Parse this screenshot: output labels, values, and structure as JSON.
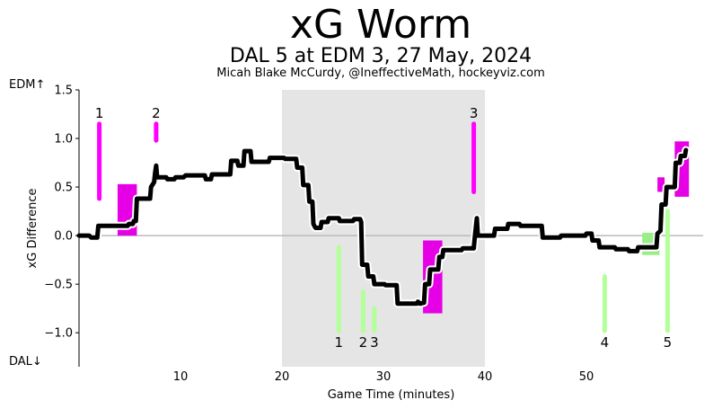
{
  "header": {
    "title": "xG Worm",
    "subtitle": "DAL 5 at EDM 3, 27 May, 2024",
    "credit": "Micah Blake McCurdy, @IneffectiveMath, hockeyviz.com"
  },
  "side_labels": {
    "top": "EDM↑",
    "bottom": "DAL↓"
  },
  "colors": {
    "worm": "#000000",
    "worm_halo": "#ffffff",
    "home_goal": "#ff00ff",
    "away_goal": "#b3ff99",
    "home_box": "#e600e6",
    "away_box": "#99ee88",
    "shade": "#e5e5e5",
    "zero_line": "#bbbbbb"
  },
  "chart_data": {
    "type": "line",
    "title": "xG Worm",
    "xlabel": "Game Time (minutes)",
    "ylabel": "xG Difference",
    "xlim": [
      0,
      61.5
    ],
    "ylim": [
      -1.35,
      1.5
    ],
    "x_ticks": [
      10,
      20,
      30,
      40,
      50
    ],
    "y_ticks": [
      1.5,
      1.0,
      0.5,
      0.0,
      -0.5,
      -1.0
    ],
    "y_tick_labels": [
      "1.5",
      "1.0",
      "0.5",
      "0.0",
      "−0.5",
      "−1.0"
    ],
    "shaded_period": [
      20,
      40
    ],
    "worm": [
      [
        0,
        0.0
      ],
      [
        1,
        0.0
      ],
      [
        1.2,
        -0.02
      ],
      [
        1.8,
        -0.02
      ],
      [
        1.9,
        0.1
      ],
      [
        4.8,
        0.1
      ],
      [
        4.9,
        0.12
      ],
      [
        5.3,
        0.12
      ],
      [
        5.4,
        0.15
      ],
      [
        5.6,
        0.15
      ],
      [
        5.7,
        0.38
      ],
      [
        7.0,
        0.38
      ],
      [
        7.1,
        0.5
      ],
      [
        7.4,
        0.55
      ],
      [
        7.5,
        0.65
      ],
      [
        7.6,
        0.72
      ],
      [
        7.7,
        0.6
      ],
      [
        8.6,
        0.6
      ],
      [
        8.7,
        0.58
      ],
      [
        9.4,
        0.58
      ],
      [
        9.5,
        0.6
      ],
      [
        10.3,
        0.6
      ],
      [
        10.5,
        0.62
      ],
      [
        12.4,
        0.62
      ],
      [
        12.5,
        0.58
      ],
      [
        13.0,
        0.58
      ],
      [
        13.1,
        0.63
      ],
      [
        14.9,
        0.63
      ],
      [
        15.0,
        0.77
      ],
      [
        15.6,
        0.77
      ],
      [
        15.7,
        0.72
      ],
      [
        16.2,
        0.72
      ],
      [
        16.3,
        0.87
      ],
      [
        16.9,
        0.87
      ],
      [
        17.0,
        0.76
      ],
      [
        18.7,
        0.76
      ],
      [
        18.8,
        0.8
      ],
      [
        20.2,
        0.8
      ],
      [
        20.3,
        0.79
      ],
      [
        21.4,
        0.79
      ],
      [
        21.5,
        0.7
      ],
      [
        22.0,
        0.7
      ],
      [
        22.1,
        0.52
      ],
      [
        22.6,
        0.52
      ],
      [
        22.7,
        0.35
      ],
      [
        23.0,
        0.35
      ],
      [
        23.1,
        0.12
      ],
      [
        23.3,
        0.08
      ],
      [
        23.8,
        0.08
      ],
      [
        23.9,
        0.14
      ],
      [
        24.5,
        0.14
      ],
      [
        24.6,
        0.18
      ],
      [
        25.6,
        0.18
      ],
      [
        25.7,
        0.15
      ],
      [
        27.0,
        0.15
      ],
      [
        27.1,
        0.17
      ],
      [
        27.7,
        0.17
      ],
      [
        27.8,
        0.14
      ],
      [
        27.9,
        -0.3
      ],
      [
        28.4,
        -0.3
      ],
      [
        28.5,
        -0.42
      ],
      [
        29.0,
        -0.42
      ],
      [
        29.1,
        -0.5
      ],
      [
        30.1,
        -0.5
      ],
      [
        30.2,
        -0.51
      ],
      [
        31.3,
        -0.51
      ],
      [
        31.4,
        -0.7
      ],
      [
        33.3,
        -0.7
      ],
      [
        33.4,
        -0.68
      ],
      [
        33.6,
        -0.7
      ],
      [
        34.0,
        -0.69
      ],
      [
        34.1,
        -0.5
      ],
      [
        34.5,
        -0.5
      ],
      [
        34.6,
        -0.35
      ],
      [
        35.4,
        -0.35
      ],
      [
        35.5,
        -0.22
      ],
      [
        35.8,
        -0.22
      ],
      [
        35.9,
        -0.15
      ],
      [
        37.7,
        -0.15
      ],
      [
        37.8,
        -0.13
      ],
      [
        38.9,
        -0.13
      ],
      [
        39.0,
        -0.02
      ],
      [
        39.2,
        0.18
      ],
      [
        39.3,
        0.0
      ],
      [
        40.9,
        0.0
      ],
      [
        41.0,
        0.07
      ],
      [
        42.2,
        0.07
      ],
      [
        42.3,
        0.12
      ],
      [
        43.4,
        0.12
      ],
      [
        43.5,
        0.1
      ],
      [
        45.6,
        0.1
      ],
      [
        45.7,
        -0.02
      ],
      [
        47.4,
        -0.02
      ],
      [
        47.5,
        0.0
      ],
      [
        49.9,
        0.0
      ],
      [
        50.0,
        0.02
      ],
      [
        50.5,
        0.02
      ],
      [
        50.6,
        -0.05
      ],
      [
        51.2,
        -0.05
      ],
      [
        51.3,
        -0.12
      ],
      [
        52.8,
        -0.12
      ],
      [
        52.9,
        -0.14
      ],
      [
        54.1,
        -0.14
      ],
      [
        54.2,
        -0.16
      ],
      [
        55.0,
        -0.16
      ],
      [
        55.1,
        -0.12
      ],
      [
        56.9,
        -0.12
      ],
      [
        57.0,
        0.02
      ],
      [
        57.3,
        0.05
      ],
      [
        57.4,
        0.32
      ],
      [
        57.8,
        0.32
      ],
      [
        57.9,
        0.5
      ],
      [
        58.7,
        0.5
      ],
      [
        58.8,
        0.75
      ],
      [
        59.2,
        0.75
      ],
      [
        59.3,
        0.82
      ],
      [
        59.7,
        0.82
      ],
      [
        59.8,
        0.88
      ]
    ],
    "home_goals": [
      {
        "label": "1",
        "x": 2.0,
        "y_from": 0.38,
        "y_to": 1.15
      },
      {
        "label": "2",
        "x": 7.6,
        "y_from": 0.98,
        "y_to": 1.15
      },
      {
        "label": "3",
        "x": 38.9,
        "y_from": 0.45,
        "y_to": 1.15
      }
    ],
    "away_goals": [
      {
        "label": "1",
        "x": 25.6,
        "y_from": -0.12,
        "y_to": -0.98
      },
      {
        "label": "2",
        "x": 28.0,
        "y_from": -0.58,
        "y_to": -0.98
      },
      {
        "label": "3",
        "x": 29.1,
        "y_from": -0.75,
        "y_to": -0.98
      },
      {
        "label": "4",
        "x": 51.8,
        "y_from": -0.42,
        "y_to": -0.98
      },
      {
        "label": "5",
        "x": 58.0,
        "y_from": 0.25,
        "y_to": -0.98
      }
    ],
    "home_boxes": [
      {
        "x0": 3.8,
        "x1": 5.7,
        "y0": 0.0,
        "y1": 0.53
      },
      {
        "x0": 33.9,
        "x1": 35.8,
        "y0": -0.8,
        "y1": -0.05
      },
      {
        "x0": 57.0,
        "x1": 57.7,
        "y0": 0.45,
        "y1": 0.6
      },
      {
        "x0": 58.7,
        "x1": 60.1,
        "y0": 0.4,
        "y1": 0.97
      }
    ],
    "away_boxes": [
      {
        "x0": 55.5,
        "x1": 57.2,
        "y0": -0.2,
        "y1": 0.03
      }
    ]
  }
}
